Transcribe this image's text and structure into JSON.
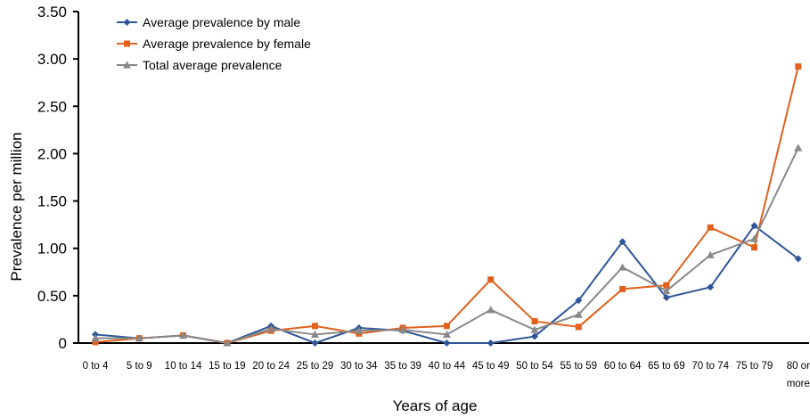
{
  "chart_data": {
    "type": "line",
    "xlabel": "Years of age",
    "ylabel": "Prevalence per million",
    "ylim": [
      0,
      3.5
    ],
    "yticks": [
      "0",
      "0.50",
      "1.00",
      "1.50",
      "2.00",
      "2.50",
      "3.00",
      "3.50"
    ],
    "grid": false,
    "legend_position": "top-left",
    "categories": [
      [
        "0 to 4"
      ],
      [
        "5 to 9"
      ],
      [
        "10 to 14"
      ],
      [
        "15 to 19"
      ],
      [
        "20 to 24"
      ],
      [
        "25 to 29"
      ],
      [
        "30 to 34"
      ],
      [
        "35 to 39"
      ],
      [
        "40 to 44"
      ],
      [
        "45 to 49"
      ],
      [
        "50 to 54"
      ],
      [
        "55 to 59"
      ],
      [
        "60 to 64"
      ],
      [
        "65 to 69"
      ],
      [
        "70 to 74"
      ],
      [
        "75 to 79"
      ],
      [
        "80 or",
        "more"
      ]
    ],
    "series": [
      {
        "name": "Average prevalence by male",
        "color": "#2e5597",
        "marker": "diamond",
        "values": [
          0.09,
          0.05,
          0.08,
          0.0,
          0.18,
          0.0,
          0.16,
          0.13,
          0.0,
          0.0,
          0.07,
          0.45,
          1.07,
          0.48,
          0.59,
          1.24,
          0.89
        ]
      },
      {
        "name": "Average prevalence by female",
        "color": "#e0601c",
        "marker": "square",
        "values": [
          0.01,
          0.05,
          0.08,
          0.0,
          0.13,
          0.18,
          0.1,
          0.16,
          0.18,
          0.67,
          0.23,
          0.17,
          0.57,
          0.61,
          1.22,
          1.01,
          2.92
        ]
      },
      {
        "name": "Total average prevalence",
        "color": "#888888",
        "marker": "triangle",
        "values": [
          0.05,
          0.05,
          0.08,
          0.0,
          0.15,
          0.09,
          0.13,
          0.14,
          0.09,
          0.35,
          0.14,
          0.3,
          0.8,
          0.55,
          0.93,
          1.1,
          2.06
        ]
      }
    ]
  }
}
